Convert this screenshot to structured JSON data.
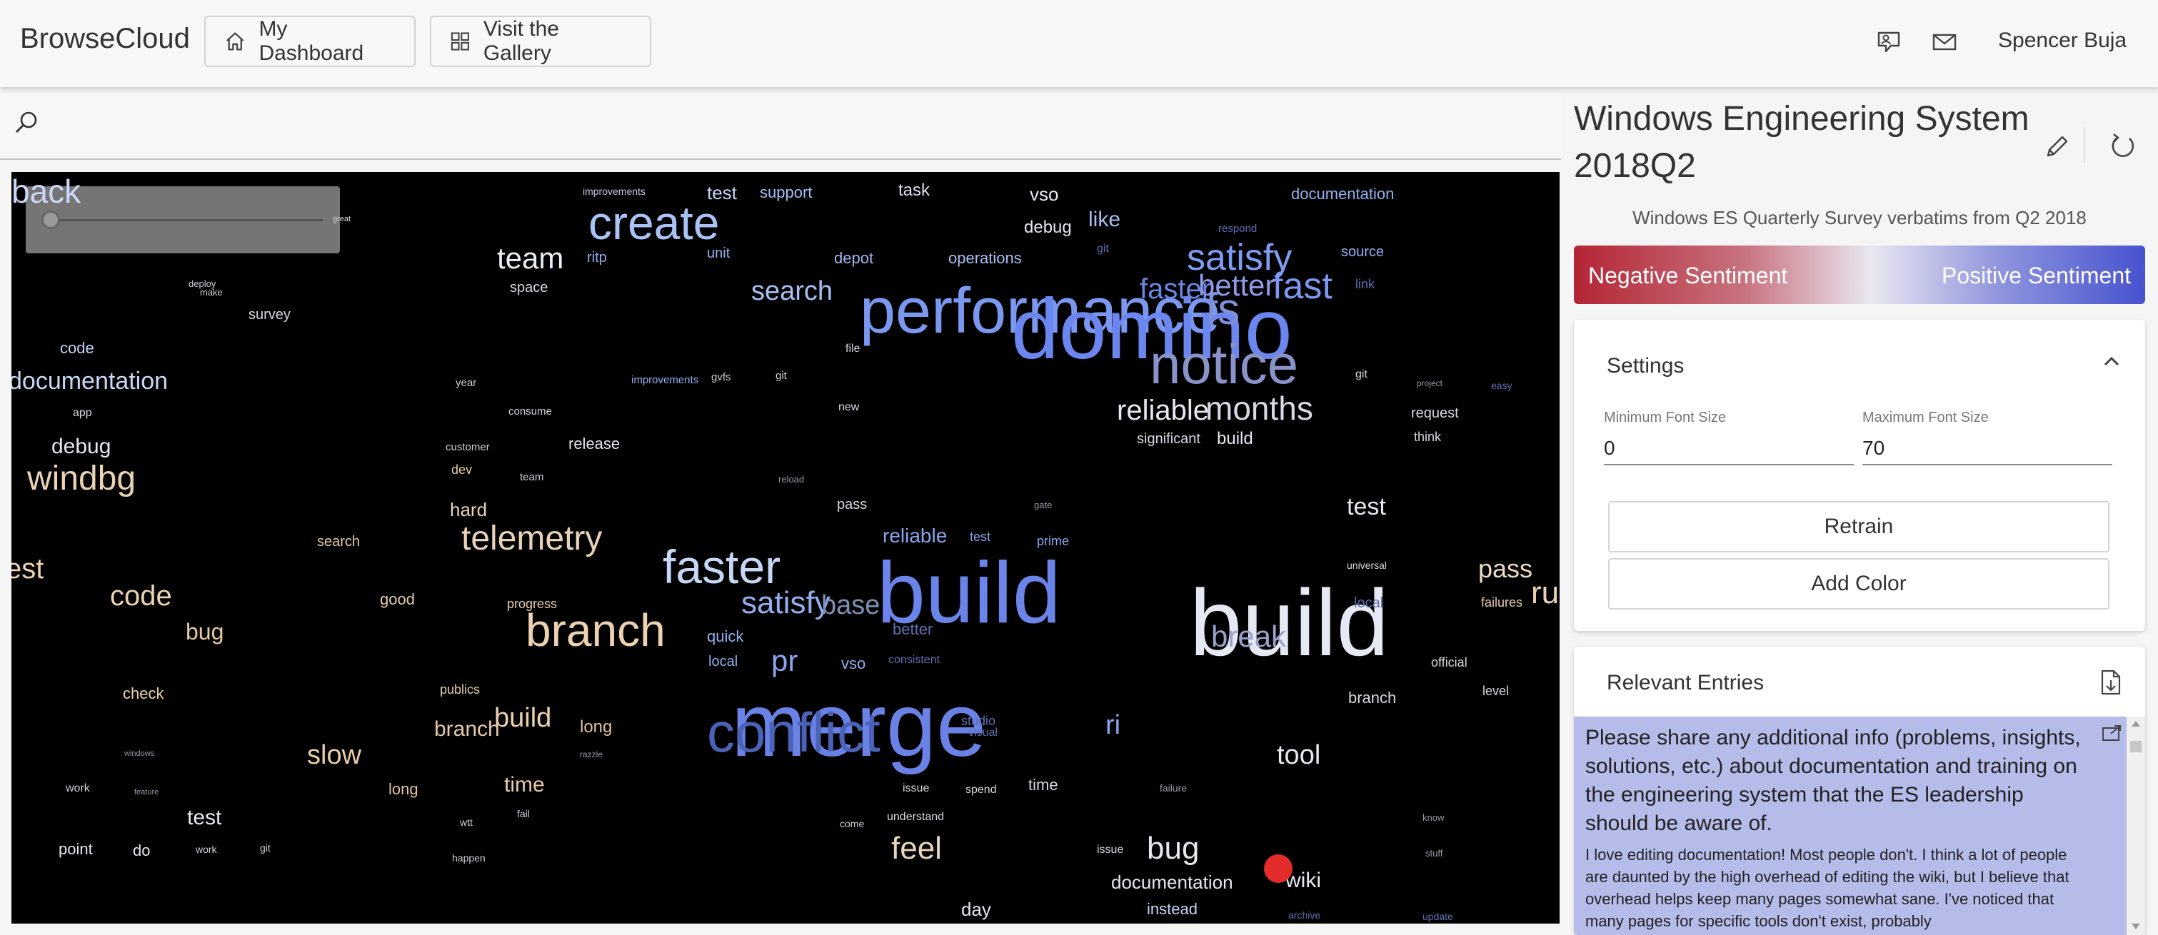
{
  "header": {
    "app_title": "BrowseCloud",
    "dashboard_label": "My Dashboard",
    "gallery_label": "Visit the Gallery",
    "user_name": "Spencer Buja"
  },
  "search": {
    "placeholder": ""
  },
  "cloud": {
    "back_label": "back",
    "slider_end_label": "great",
    "words": [
      {
        "t": "create",
        "c": "#a9c3f5"
      },
      {
        "t": "performance",
        "c": "#7a98f0"
      },
      {
        "t": "domino",
        "c": "#6b86ee"
      },
      {
        "t": "notice",
        "c": "#8a93c9"
      },
      {
        "t": "fs",
        "c": "#8090d8"
      },
      {
        "t": "satisfy",
        "c": "#7f9cf2"
      },
      {
        "t": "faster",
        "c": "#6a86e6"
      },
      {
        "t": "better",
        "c": "#8f9ae8"
      },
      {
        "t": "fast",
        "c": "#7b97ef"
      },
      {
        "t": "reliable",
        "c": "#e8e8f4"
      },
      {
        "t": "months",
        "c": "#d8d8e6"
      },
      {
        "t": "team",
        "c": "#e7ecf7"
      },
      {
        "t": "search",
        "c": "#a7bff2"
      },
      {
        "t": "telemetry",
        "c": "#e8d3b9"
      },
      {
        "t": "branch",
        "c": "#ecd2b0"
      },
      {
        "t": "faster",
        "c": "#c6d6f5"
      },
      {
        "t": "satisfy",
        "c": "#93aff0"
      },
      {
        "t": "base",
        "c": "#7f8fb4"
      },
      {
        "t": "build",
        "c": "#6a84ea"
      },
      {
        "t": "build",
        "c": "#e6e8f3"
      },
      {
        "t": "break",
        "c": "#9aa3c8"
      },
      {
        "t": "merge",
        "c": "#6a82e6"
      },
      {
        "t": "conflict",
        "c": "#4a63b8"
      },
      {
        "t": "windbg",
        "c": "#ead3b3"
      },
      {
        "t": "documentation",
        "c": "#c9d8f5"
      },
      {
        "t": "code",
        "c": "#ecd2b0"
      },
      {
        "t": "debug",
        "c": "#e6e6ee"
      },
      {
        "t": "bug",
        "c": "#e8c9a3"
      },
      {
        "t": "slow",
        "c": "#e8ccaa"
      },
      {
        "t": "build",
        "c": "#ecd2b0"
      },
      {
        "t": "branch",
        "c": "#e3c9a9"
      },
      {
        "t": "time",
        "c": "#e6cbaa"
      },
      {
        "t": "test",
        "c": "#e8e8f0"
      },
      {
        "t": "feel",
        "c": "#e8d5bd"
      },
      {
        "t": "bug",
        "c": "#e6e8f0"
      },
      {
        "t": "tool",
        "c": "#e6e8f0"
      },
      {
        "t": "test",
        "c": "#e8e8f0"
      },
      {
        "t": "pass",
        "c": "#ecd9c2"
      },
      {
        "t": "ru",
        "c": "#ecd2b0"
      },
      {
        "t": "est",
        "c": "#ecd2b0"
      },
      {
        "t": "pr",
        "c": "#8aa5ef"
      },
      {
        "t": "ri",
        "c": "#8aa5ef"
      },
      {
        "t": "wiki",
        "c": "#e6e8f0"
      },
      {
        "t": "documentation",
        "c": "#e6e8f0"
      },
      {
        "t": "instead",
        "c": "#c5d4f5"
      },
      {
        "t": "day",
        "c": "#e6e6ee"
      },
      {
        "t": "hard",
        "c": "#e8d3b9"
      },
      {
        "t": "reliable",
        "c": "#8aa5ef"
      },
      {
        "t": "long",
        "c": "#e6cbaa"
      },
      {
        "t": "vso",
        "c": "#e6e8f0"
      },
      {
        "t": "debug",
        "c": "#e6e8f0"
      },
      {
        "t": "like",
        "c": "#a7bff2"
      },
      {
        "t": "depot",
        "c": "#9fb6ee"
      },
      {
        "t": "operations",
        "c": "#a7bff2"
      },
      {
        "t": "release",
        "c": "#e6e6ee"
      },
      {
        "t": "survey",
        "c": "#d8d8e0"
      },
      {
        "t": "code",
        "c": "#c5d4f5"
      },
      {
        "t": "quick",
        "c": "#93aff0"
      },
      {
        "t": "local",
        "c": "#93aff0"
      },
      {
        "t": "vso",
        "c": "#93aff0"
      },
      {
        "t": "significant",
        "c": "#d8d8e6"
      },
      {
        "t": "build",
        "c": "#e6e8f0"
      },
      {
        "t": "request",
        "c": "#d8d8e0"
      },
      {
        "t": "think",
        "c": "#d8d8e0"
      },
      {
        "t": "test",
        "c": "#c5d4f5"
      },
      {
        "t": "support",
        "c": "#a7bff2"
      },
      {
        "t": "task",
        "c": "#d8dff0"
      },
      {
        "t": "source",
        "c": "#93aff0"
      },
      {
        "t": "documentation",
        "c": "#93aff0"
      },
      {
        "t": "good",
        "c": "#e6cbaa"
      },
      {
        "t": "check",
        "c": "#ecd2b0"
      },
      {
        "t": "long",
        "c": "#e3c29c"
      },
      {
        "t": "point",
        "c": "#e6e6ee"
      },
      {
        "t": "do",
        "c": "#e6e6ee"
      },
      {
        "t": "work",
        "c": "#d8d8e0"
      },
      {
        "t": "space",
        "c": "#d8d8e0"
      },
      {
        "t": "unit",
        "c": "#93aff0"
      },
      {
        "t": "ritp",
        "c": "#93aff0"
      },
      {
        "t": "app",
        "c": "#d8d8e0"
      },
      {
        "t": "dev",
        "c": "#e6cbaa"
      },
      {
        "t": "publics",
        "c": "#e6cbaa"
      },
      {
        "t": "progress",
        "c": "#e6cbaa"
      },
      {
        "t": "search",
        "c": "#e6cbaa"
      },
      {
        "t": "official",
        "c": "#d8d8e0"
      },
      {
        "t": "failures",
        "c": "#e6cbaa"
      },
      {
        "t": "test",
        "c": "#8aa5ef"
      },
      {
        "t": "prime",
        "c": "#8aa5ef"
      },
      {
        "t": "pass",
        "c": "#d8d8e6"
      },
      {
        "t": "new",
        "c": "#d8d8e6"
      },
      {
        "t": "branch",
        "c": "#d8d8e0"
      },
      {
        "t": "level",
        "c": "#d8d8e0"
      },
      {
        "t": "time",
        "c": "#d8d8e0"
      },
      {
        "t": "issue",
        "c": "#d8d8e0"
      },
      {
        "t": "spend",
        "c": "#d8d8e0"
      },
      {
        "t": "understand",
        "c": "#d8d8e0"
      },
      {
        "t": "issue",
        "c": "#d8d8e0"
      },
      {
        "t": "better",
        "c": "#5f6fb0"
      },
      {
        "t": "consistent",
        "c": "#5f6fb0"
      },
      {
        "t": "studio",
        "c": "#5f6fb0"
      },
      {
        "t": "visual",
        "c": "#5f6fb0"
      },
      {
        "t": "universal",
        "c": "#d8d8e0"
      },
      {
        "t": "local",
        "c": "#5f6fb0"
      },
      {
        "t": "link",
        "c": "#5f6fb0"
      },
      {
        "t": "git",
        "c": "#d8d8e0"
      },
      {
        "t": "year",
        "c": "#cfcfd8"
      },
      {
        "t": "customer",
        "c": "#cfcfd8"
      },
      {
        "t": "team",
        "c": "#cfcfd8"
      },
      {
        "t": "consume",
        "c": "#cfcfd8"
      },
      {
        "t": "improvements",
        "c": "#93aff0"
      },
      {
        "t": "gvfs",
        "c": "#cfcfd8"
      },
      {
        "t": "git",
        "c": "#cfcfd8"
      },
      {
        "t": "file",
        "c": "#cfcfd8"
      },
      {
        "t": "reload",
        "c": "#9a9aa8"
      },
      {
        "t": "respond",
        "c": "#5f6fb0"
      },
      {
        "t": "git",
        "c": "#5f6fb0"
      },
      {
        "t": "project",
        "c": "#9a9aa8"
      },
      {
        "t": "easy",
        "c": "#5f6fb0"
      },
      {
        "t": "gate",
        "c": "#9a9aa8"
      },
      {
        "t": "failure",
        "c": "#9a9aa8"
      },
      {
        "t": "happen",
        "c": "#cfcfd8"
      },
      {
        "t": "fail",
        "c": "#cfcfd8"
      },
      {
        "t": "wtt",
        "c": "#cfcfd8"
      },
      {
        "t": "come",
        "c": "#cfcfd8"
      },
      {
        "t": "archive",
        "c": "#5f6fb0"
      },
      {
        "t": "update",
        "c": "#5f6fb0"
      },
      {
        "t": "stuff",
        "c": "#9a9aa8"
      },
      {
        "t": "know",
        "c": "#9a9aa8"
      },
      {
        "t": "git",
        "c": "#cfcfd8"
      },
      {
        "t": "work",
        "c": "#cfcfd8"
      },
      {
        "t": "deploy",
        "c": "#cfcfd8"
      },
      {
        "t": "make",
        "c": "#cfcfd8"
      },
      {
        "t": "feature",
        "c": "#9a9aa8"
      },
      {
        "t": "windows",
        "c": "#9a9aa8"
      },
      {
        "t": "razzle",
        "c": "#9a9aa8"
      }
    ]
  },
  "panel": {
    "title": "Windows Engineering System 2018Q2",
    "subtitle": "Windows ES Quarterly Survey verbatims from Q2 2018",
    "negative_label": "Negative Sentiment",
    "positive_label": "Positive Sentiment",
    "colors": {
      "negative": "#b42535",
      "neutral": "#e9e7f0",
      "positive": "#4852cf"
    }
  },
  "settings": {
    "title": "Settings",
    "min_font_label": "Minimum Font Size",
    "min_font_value": "0",
    "max_font_label": "Maximum Font Size",
    "max_font_value": "70",
    "retrain_label": "Retrain",
    "add_color_label": "Add Color"
  },
  "entries": {
    "title": "Relevant Entries",
    "items": [
      {
        "question": "Please share any additional info (problems, insights, solutions, etc.) about documentation and training on the engineering system that the ES leadership should be aware of.",
        "answer": "I love editing documentation! Most people don't. I think a lot of people are daunted by the high overhead of editing the wiki, but I believe that overhead helps keep many pages somewhat sane. I've noticed that many pages for specific tools don't exist, probably"
      }
    ]
  }
}
